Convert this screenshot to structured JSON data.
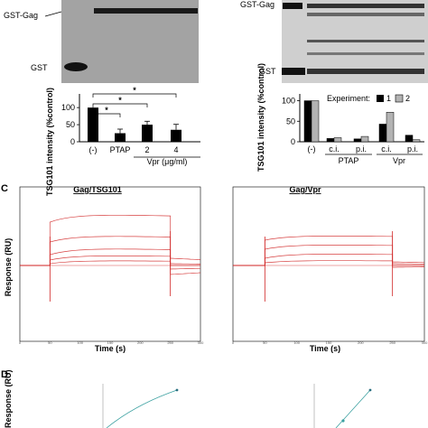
{
  "panel_letters": {
    "c": "C",
    "d": "D"
  },
  "blot_left": {
    "band_top": "GST-Gag",
    "band_bottom": "GST"
  },
  "blot_right": {
    "band_top": "GST-Gag",
    "band_bottom": "GST"
  },
  "colors": {
    "sensorgram": "#d02020",
    "bar_black": "#000000",
    "bar_grey": "#b3b3b3",
    "fit_line": "#3aa0a0"
  },
  "chart_data": [
    {
      "type": "bar",
      "id": "left-bar",
      "categories": [
        "(-)",
        "PTAP",
        "2",
        "4"
      ],
      "values": [
        100,
        25,
        50,
        35
      ],
      "errors": [
        0,
        12,
        10,
        16
      ],
      "ylabel": "TSG101 intensity (%control)",
      "yticks": [
        "0",
        "50",
        "100"
      ],
      "ylim": [
        0,
        140
      ],
      "group_label": "Vpr (μg/ml)",
      "significance": [
        "*",
        "*",
        "*"
      ]
    },
    {
      "type": "bar",
      "id": "right-bar",
      "categories": [
        "(-)",
        "c.i.",
        "p.i.",
        "c.i.",
        "p.i."
      ],
      "groups": [
        "PTAP",
        "Vpr"
      ],
      "series": [
        {
          "name": "1",
          "values": [
            100,
            8,
            7,
            43,
            16
          ]
        },
        {
          "name": "2",
          "values": [
            100,
            10,
            13,
            72,
            5
          ]
        }
      ],
      "legend_title": "Experiment:",
      "ylabel": "TSG101 intensity (%control)",
      "yticks": [
        "0",
        "50",
        "100"
      ],
      "ylim": [
        0,
        110
      ]
    },
    {
      "type": "line",
      "id": "sensorgram-left",
      "title": "Gag/TSG101",
      "xlabel": "Time (s)",
      "ylabel": "Response (RU)",
      "injection_start": 50,
      "injection_end": 250,
      "curves": [
        {
          "rise": 48,
          "plateau": 58,
          "tail": -10
        },
        {
          "rise": 26,
          "plateau": 34,
          "tail": -4
        },
        {
          "rise": 12,
          "plateau": 20,
          "tail": 8
        },
        {
          "rise": 6,
          "plateau": 12,
          "tail": 2
        },
        {
          "rise": 2,
          "plateau": 6,
          "tail": 0
        }
      ]
    },
    {
      "type": "line",
      "id": "sensorgram-right",
      "title": "Gag/Vpr",
      "xlabel": "Time (s)",
      "ylabel": "",
      "injection_start": 50,
      "injection_end": 250,
      "curves": [
        {
          "rise": 28,
          "plateau": 34,
          "tail": 4
        },
        {
          "rise": 18,
          "plateau": 24,
          "tail": 2
        },
        {
          "rise": 8,
          "plateau": 14,
          "tail": -2
        },
        {
          "rise": 3,
          "plateau": 6,
          "tail": 0
        }
      ]
    },
    {
      "type": "scatter",
      "id": "panel-d-left",
      "ylabel": "Response (RU)"
    },
    {
      "type": "scatter",
      "id": "panel-d-right",
      "ylabel": ""
    }
  ]
}
